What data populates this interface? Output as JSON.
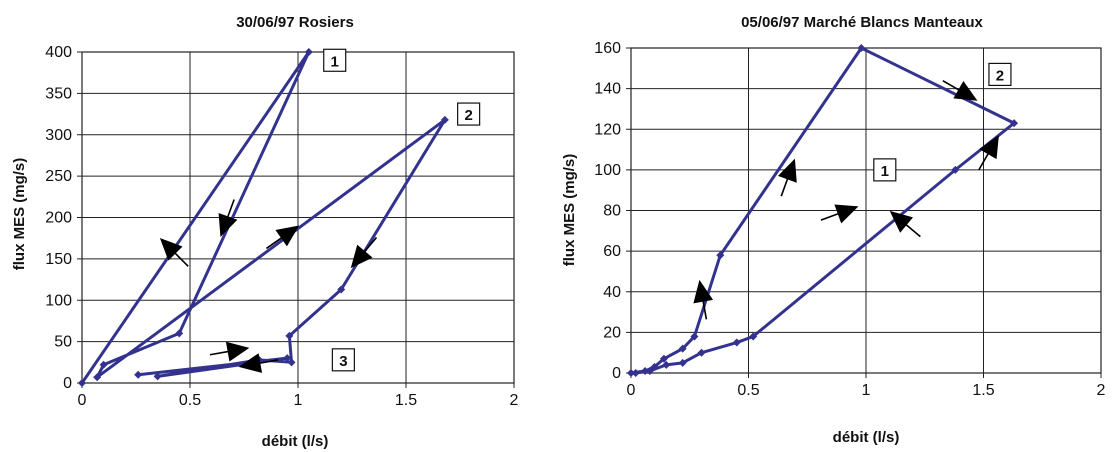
{
  "chart_data": [
    {
      "type": "line",
      "title": "30/06/97 Rosiers",
      "xlabel": "débit (l/s)",
      "ylabel": "flux MES (mg/s)",
      "xlim": [
        0,
        2
      ],
      "ylim": [
        0,
        400
      ],
      "x_ticks": [
        "0",
        "0.5",
        "1",
        "1.5",
        "2"
      ],
      "y_ticks": [
        "0",
        "50",
        "100",
        "150",
        "200",
        "250",
        "300",
        "350",
        "400"
      ],
      "grid": true,
      "series_color": "#33338f",
      "series": [
        {
          "points": [
            [
              0,
              0
            ],
            [
              1.05,
              400
            ],
            [
              0.45,
              60
            ],
            [
              0.1,
              22
            ],
            [
              0.07,
              7
            ],
            [
              1.68,
              318
            ],
            [
              1.2,
              113
            ],
            [
              0.96,
              57
            ],
            [
              0.97,
              25
            ],
            [
              0.82,
              28
            ],
            [
              0.35,
              8
            ],
            [
              0.95,
              30
            ],
            [
              0.26,
              10
            ]
          ]
        }
      ],
      "arrows": [
        {
          "x": 0.4,
          "y": 165,
          "angle_deg": -135
        },
        {
          "x": 0.66,
          "y": 190,
          "angle_deg": 110
        },
        {
          "x": 0.96,
          "y": 182,
          "angle_deg": -35
        },
        {
          "x": 1.28,
          "y": 150,
          "angle_deg": 130
        },
        {
          "x": 0.72,
          "y": 40,
          "angle_deg": -10
        },
        {
          "x": 0.78,
          "y": 22,
          "angle_deg": 170
        }
      ],
      "annotations": [
        {
          "text": "1",
          "x": 1.17,
          "y": 390
        },
        {
          "text": "2",
          "x": 1.79,
          "y": 325
        },
        {
          "text": "3",
          "x": 1.21,
          "y": 28
        }
      ]
    },
    {
      "type": "line",
      "title": "05/06/97 Marché Blancs Manteaux",
      "xlabel": "débit (l/s)",
      "ylabel": "flux MES (mg/s)",
      "xlim": [
        0,
        2
      ],
      "ylim": [
        0,
        160
      ],
      "x_ticks": [
        "0",
        "0.5",
        "1",
        "1.5",
        "2"
      ],
      "y_ticks": [
        "0",
        "20",
        "40",
        "60",
        "80",
        "100",
        "120",
        "140",
        "160"
      ],
      "grid": true,
      "series_color": "#33338f",
      "series": [
        {
          "points": [
            [
              0,
              0
            ],
            [
              0.06,
              1
            ],
            [
              0.1,
              3
            ],
            [
              0.14,
              7
            ],
            [
              0.22,
              12
            ],
            [
              0.27,
              18
            ],
            [
              0.38,
              58
            ],
            [
              0.98,
              160
            ],
            [
              1.63,
              123
            ],
            [
              1.38,
              100
            ],
            [
              0.52,
              18
            ],
            [
              0.45,
              15
            ],
            [
              0.3,
              10
            ],
            [
              0.22,
              5
            ],
            [
              0.15,
              4
            ],
            [
              0.08,
              1
            ],
            [
              0.02,
              0
            ]
          ]
        }
      ],
      "arrows": [
        {
          "x": 0.3,
          "y": 40,
          "angle_deg": -100
        },
        {
          "x": 0.68,
          "y": 100,
          "angle_deg": -70
        },
        {
          "x": 0.92,
          "y": 80,
          "angle_deg": -20
        },
        {
          "x": 1.43,
          "y": 137,
          "angle_deg": 30
        },
        {
          "x": 1.54,
          "y": 112,
          "angle_deg": -60
        },
        {
          "x": 1.14,
          "y": 76,
          "angle_deg": -140
        }
      ],
      "annotations": [
        {
          "text": "1",
          "x": 1.08,
          "y": 100
        },
        {
          "text": "2",
          "x": 1.57,
          "y": 147
        }
      ]
    }
  ]
}
